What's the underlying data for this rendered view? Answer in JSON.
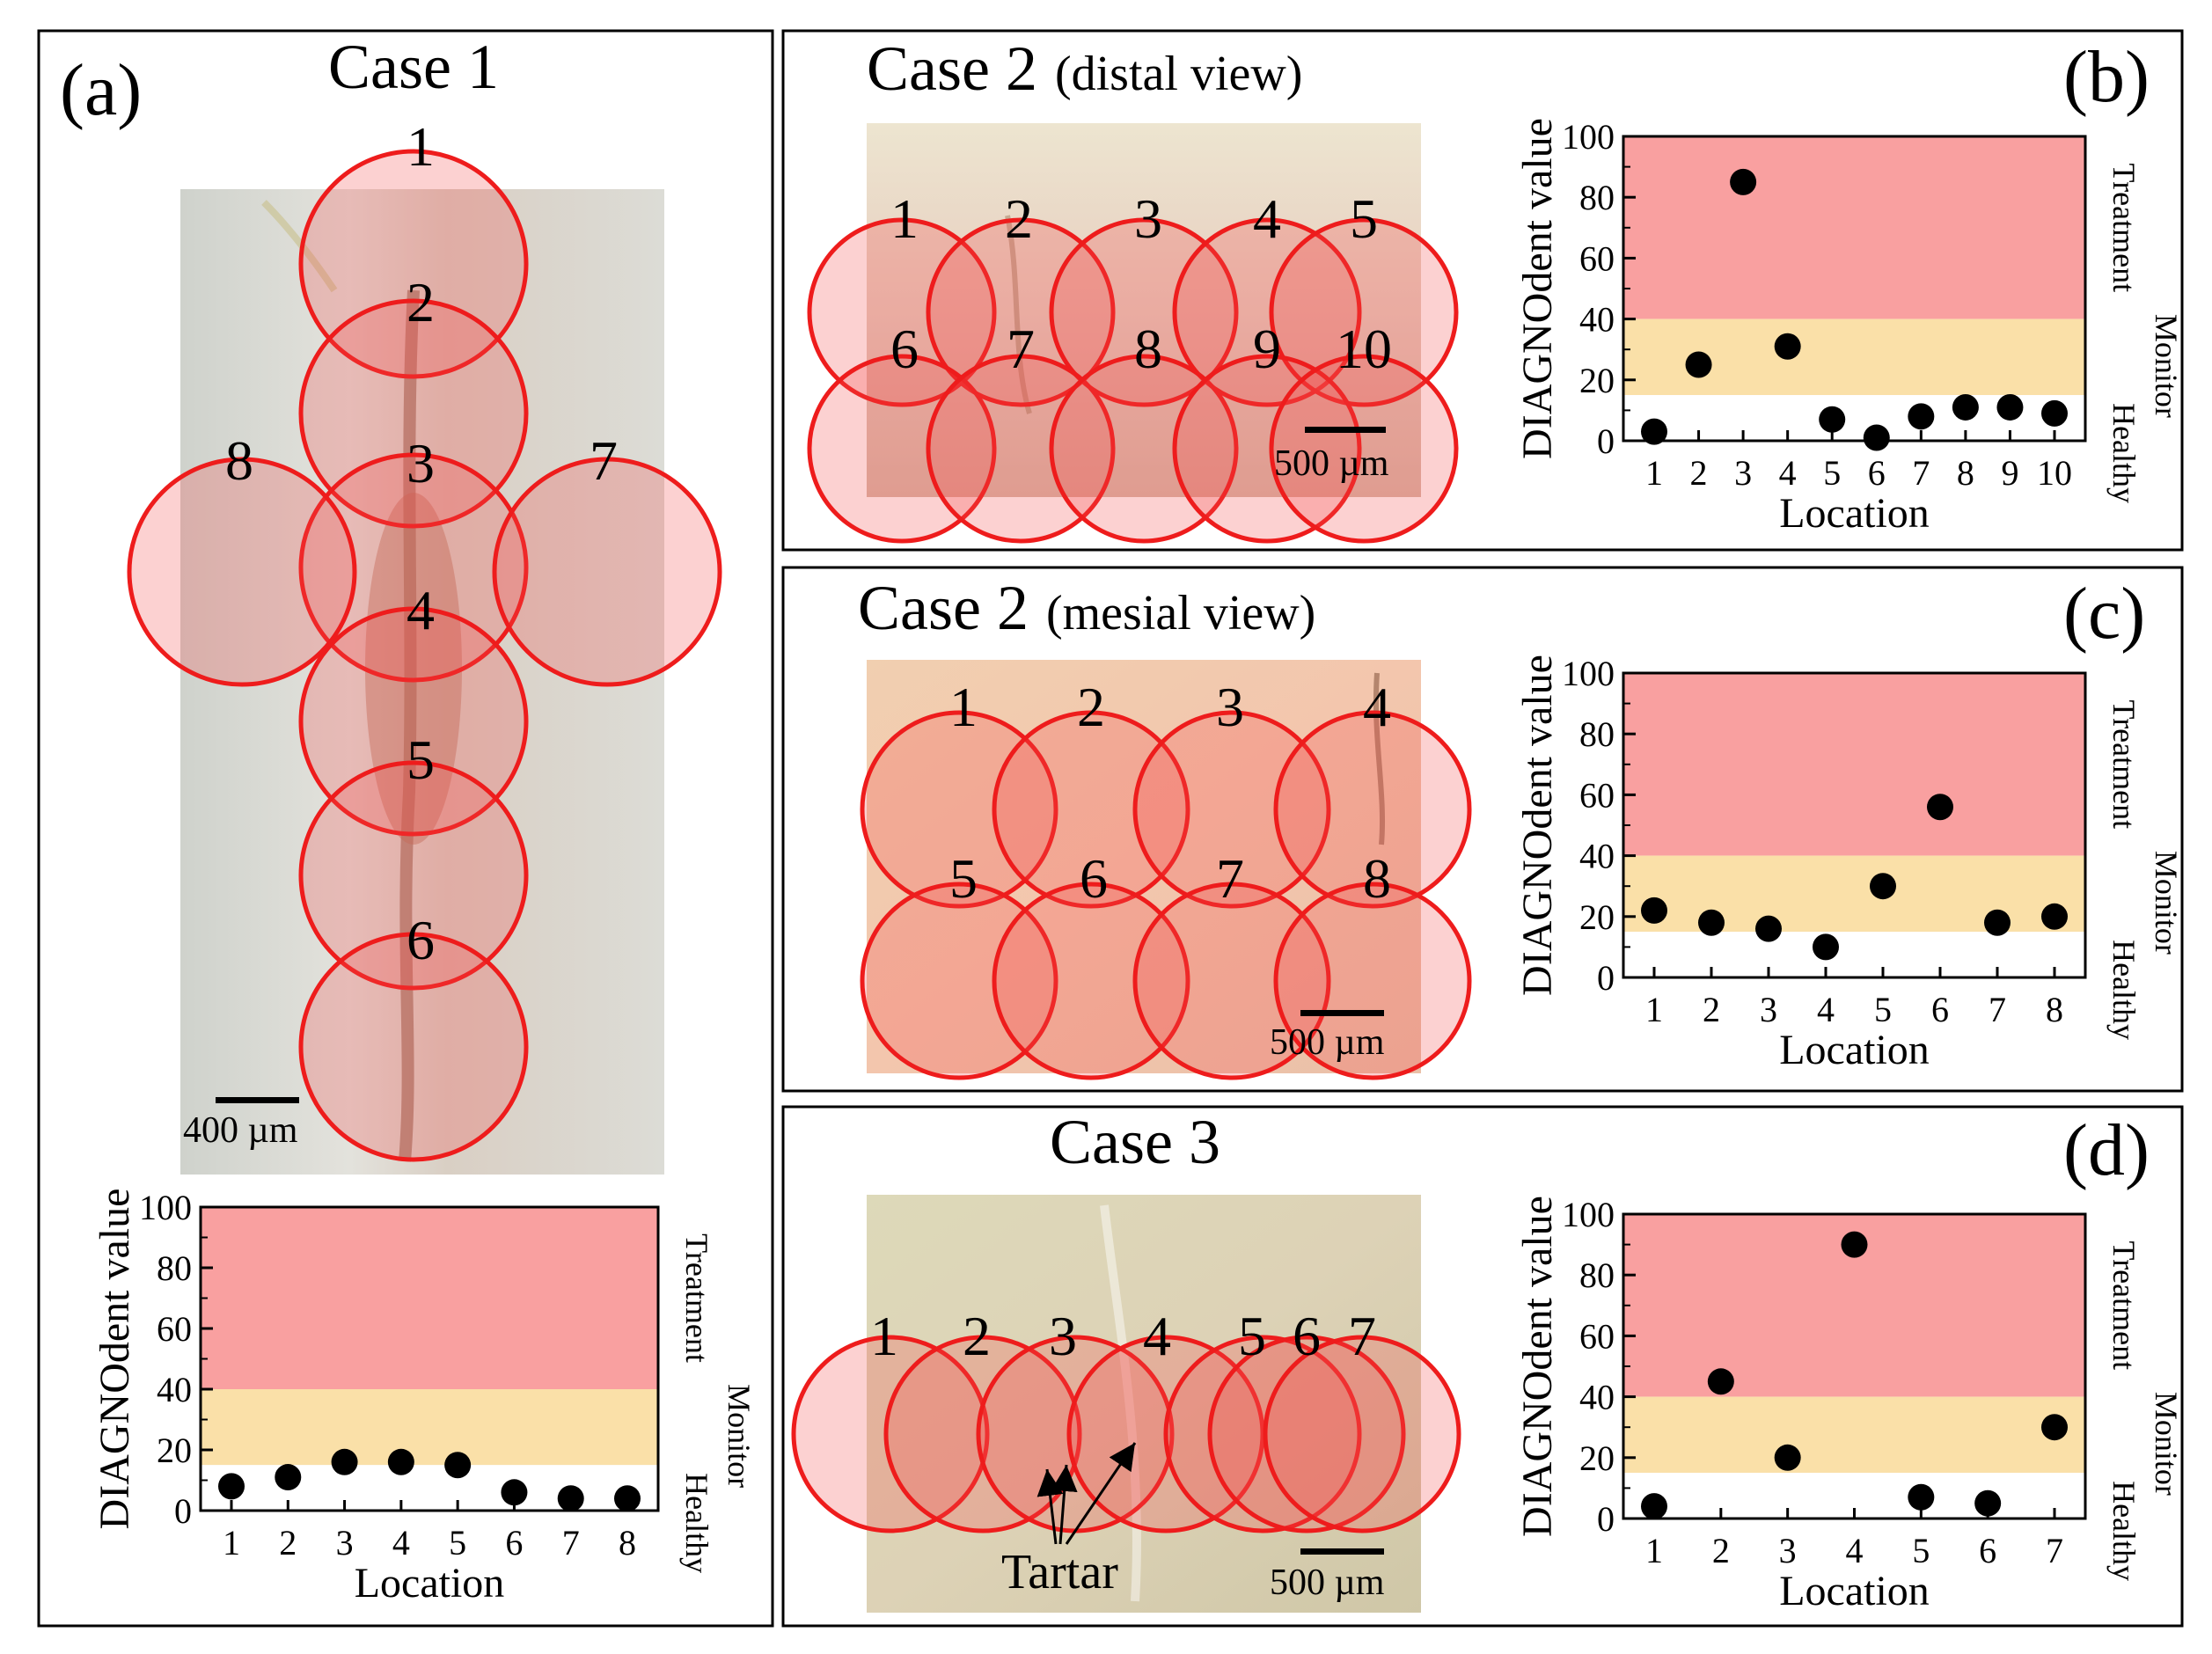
{
  "colors": {
    "treatment": "#f9a0a0",
    "monitor": "#fae0a8",
    "healthy": "#ffffff",
    "marker": "#000000",
    "circle_stroke": "#ee1c1c",
    "circle_fill": "rgba(244,76,76,0.26)"
  },
  "zones": {
    "treatment_label": "Treatment",
    "monitor_label": "Monitor",
    "healthy_label": "Healthy",
    "healthy_max": 15,
    "monitor_max": 40
  },
  "panels": {
    "a": {
      "letter": "(a)",
      "title": "Case 1",
      "scale": "400 µm",
      "location_labels": [
        "1",
        "2",
        "3",
        "4",
        "5",
        "6",
        "7",
        "8"
      ]
    },
    "b": {
      "letter": "(b)",
      "title": "Case 2",
      "subtitle": "(distal view)",
      "scale": "500 µm",
      "location_labels": [
        "1",
        "2",
        "3",
        "4",
        "5",
        "6",
        "7",
        "8",
        "9",
        "10"
      ]
    },
    "c": {
      "letter": "(c)",
      "title": "Case 2",
      "subtitle": "(mesial view)",
      "scale": "500 µm",
      "location_labels": [
        "1",
        "2",
        "3",
        "4",
        "5",
        "6",
        "7",
        "8"
      ]
    },
    "d": {
      "letter": "(d)",
      "title": "Case 3",
      "scale": "500 µm",
      "tartar_label": "Tartar",
      "location_labels": [
        "1",
        "2",
        "3",
        "4",
        "5",
        "6",
        "7"
      ]
    }
  },
  "chart_data": [
    {
      "panel": "a",
      "type": "scatter",
      "x": [
        1,
        2,
        3,
        4,
        5,
        6,
        7,
        8
      ],
      "y": [
        8,
        11,
        16,
        16,
        15,
        6,
        4,
        4
      ],
      "xlabel": "Location",
      "ylabel": "DIAGNOdent value",
      "ylim": [
        0,
        100
      ],
      "yticks": [
        0,
        20,
        40,
        60,
        80,
        100
      ]
    },
    {
      "panel": "b",
      "type": "scatter",
      "x": [
        1,
        2,
        3,
        4,
        5,
        6,
        7,
        8,
        9,
        10
      ],
      "y": [
        3,
        25,
        85,
        31,
        7,
        1,
        8,
        11,
        11,
        9
      ],
      "xlabel": "Location",
      "ylabel": "DIAGNOdent value",
      "ylim": [
        0,
        100
      ],
      "yticks": [
        0,
        20,
        40,
        60,
        80,
        100
      ]
    },
    {
      "panel": "c",
      "type": "scatter",
      "x": [
        1,
        2,
        3,
        4,
        5,
        6,
        7,
        8
      ],
      "y": [
        22,
        18,
        16,
        10,
        30,
        56,
        18,
        20
      ],
      "xlabel": "Location",
      "ylabel": "DIAGNOdent value",
      "ylim": [
        0,
        100
      ],
      "yticks": [
        0,
        20,
        40,
        60,
        80,
        100
      ]
    },
    {
      "panel": "d",
      "type": "scatter",
      "x": [
        1,
        2,
        3,
        4,
        5,
        6,
        7
      ],
      "y": [
        4,
        45,
        20,
        90,
        7,
        5,
        30
      ],
      "xlabel": "Location",
      "ylabel": "DIAGNOdent value",
      "ylim": [
        0,
        100
      ],
      "yticks": [
        0,
        20,
        40,
        60,
        80,
        100
      ]
    }
  ]
}
